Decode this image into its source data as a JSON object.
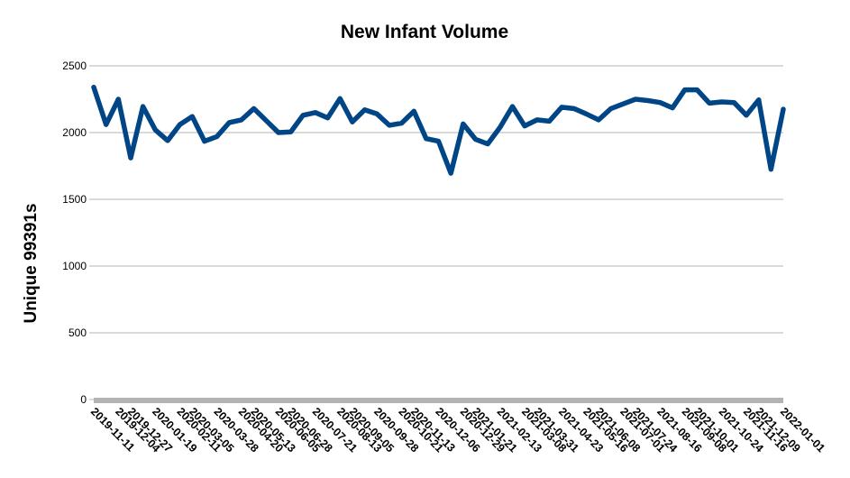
{
  "chart_data": {
    "type": "line",
    "title": "New Infant Volume",
    "xlabel": "",
    "ylabel": "Unique 99391s",
    "ylim": [
      0,
      2500
    ],
    "yticks": [
      0,
      500,
      1000,
      1500,
      2000,
      2500
    ],
    "grid": true,
    "legend": "none",
    "series_color": "#004586",
    "x_tick_labels": [
      "2019-11-11",
      "2019-12-04",
      "2019-12-27",
      "2020-01-19",
      "2020-02-11",
      "2020-03-05",
      "2020-03-28",
      "2020-04-20",
      "2020-05-13",
      "2020-06-05",
      "2020-06-28",
      "2020-07-21",
      "2020-08-13",
      "2020-09-05",
      "2020-09-28",
      "2020-10-21",
      "2020-11-13",
      "2020-12-06",
      "2020-12-29",
      "2021-01-21",
      "2021-02-13",
      "2021-03-08",
      "2021-03-31",
      "2021-04-23",
      "2021-05-16",
      "2021-06-08",
      "2021-07-01",
      "2021-07-24",
      "2021-08-16",
      "2021-09-08",
      "2021-10-01",
      "2021-10-24",
      "2021-11-16",
      "2021-12-09",
      "2022-01-01"
    ],
    "values": [
      2340,
      2060,
      2250,
      1810,
      2195,
      2020,
      1940,
      2060,
      2120,
      1935,
      1970,
      2075,
      2095,
      2180,
      2090,
      2000,
      2005,
      2130,
      2150,
      2110,
      2255,
      2080,
      2170,
      2140,
      2055,
      2070,
      2160,
      1955,
      1935,
      1695,
      2065,
      1950,
      1915,
      2040,
      2195,
      2050,
      2095,
      2085,
      2190,
      2180,
      2140,
      2095,
      2180,
      2215,
      2250,
      2240,
      2225,
      2185,
      2320,
      2320,
      2220,
      2230,
      2225,
      2130,
      2245,
      1725,
      2175
    ]
  }
}
